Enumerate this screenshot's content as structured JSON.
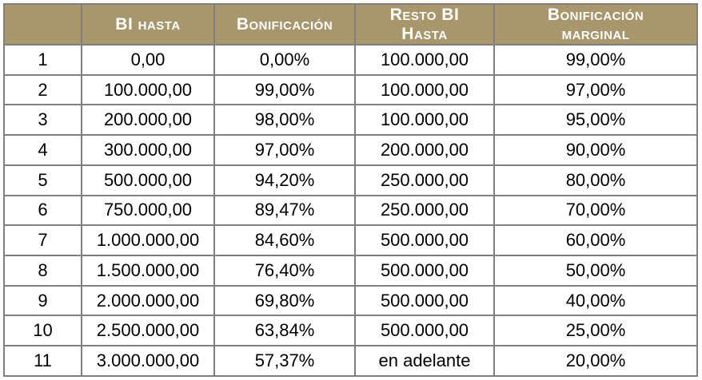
{
  "table": {
    "columns": [
      {
        "id": "row-number",
        "label": ""
      },
      {
        "id": "bi-hasta",
        "label": "BI hasta"
      },
      {
        "id": "bonificacion",
        "label": "Bonificación"
      },
      {
        "id": "resto-bi-hasta",
        "label": "Resto BI\nHasta"
      },
      {
        "id": "bonificacion-marginal",
        "label": "Bonificación\nmarginal"
      }
    ],
    "rows": [
      [
        "1",
        "0,00",
        "0,00%",
        "100.000,00",
        "99,00%"
      ],
      [
        "2",
        "100.000,00",
        "99,00%",
        "100.000,00",
        "97,00%"
      ],
      [
        "3",
        "200.000,00",
        "98,00%",
        "100.000,00",
        "95,00%"
      ],
      [
        "4",
        "300.000,00",
        "97,00%",
        "200.000,00",
        "90,00%"
      ],
      [
        "5",
        "500.000,00",
        "94,20%",
        "250.000,00",
        "80,00%"
      ],
      [
        "6",
        "750.000,00",
        "89,47%",
        "250.000,00",
        "70,00%"
      ],
      [
        "7",
        "1.000.000,00",
        "84,60%",
        "500.000,00",
        "60,00%"
      ],
      [
        "8",
        "1.500.000,00",
        "76,40%",
        "500.000,00",
        "50,00%"
      ],
      [
        "9",
        "2.000.000,00",
        "69,80%",
        "500.000,00",
        "40,00%"
      ],
      [
        "10",
        "2.500.000,00",
        "63,84%",
        "500.000,00",
        "25,00%"
      ],
      [
        "11",
        "3.000.000,00",
        "57,37%",
        "en adelante",
        "20,00%"
      ]
    ]
  },
  "colors": {
    "header_bg": "#a8976c",
    "header_text": "#ffffff",
    "border": "#7f7f7f",
    "cell_text": "#000000"
  }
}
